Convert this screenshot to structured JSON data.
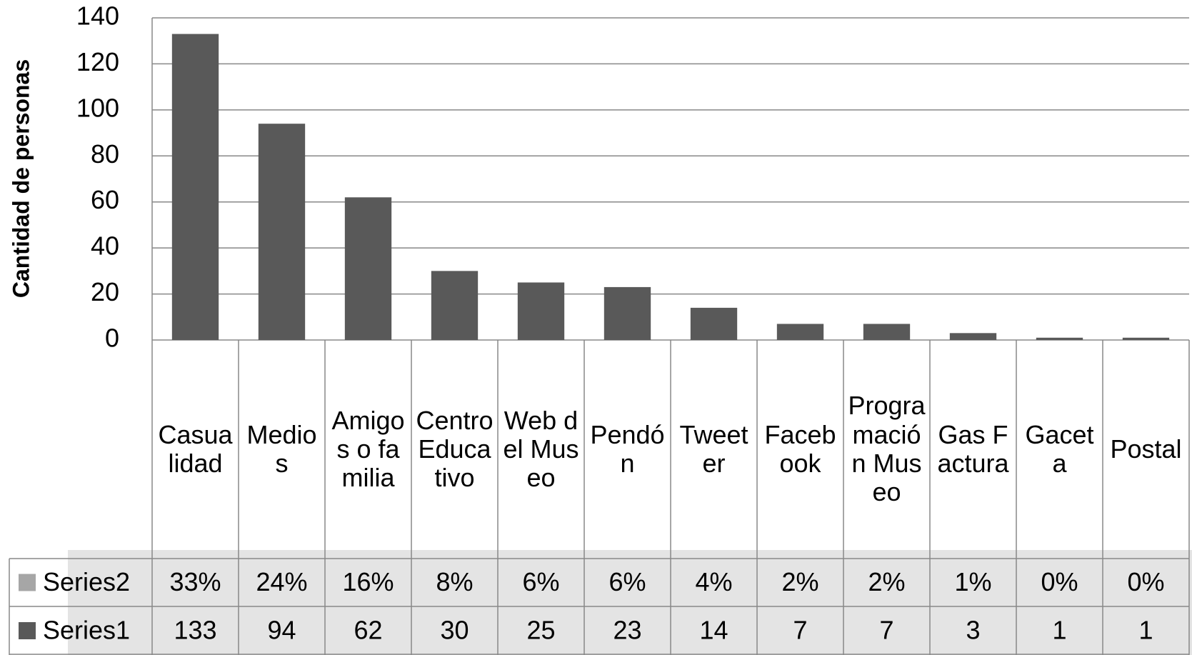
{
  "chart_data": {
    "type": "bar",
    "y_label": "Cantidad de personas",
    "categories": [
      "Casualidad",
      "Medios",
      "Amigos o familia",
      "Centro Educativo",
      "Web del Museo",
      "Pendón",
      "Tweeter",
      "Facebook",
      "Programación Museo",
      "Gas Factura",
      "Gaceta",
      "Postal"
    ],
    "series": [
      {
        "name": "Series2",
        "color": "#a6a6a6",
        "values": [
          33,
          24,
          16,
          8,
          6,
          6,
          4,
          2,
          2,
          1,
          0,
          0
        ],
        "value_labels": [
          "33%",
          "24%",
          "16%",
          "8%",
          "6%",
          "6%",
          "4%",
          "2%",
          "2%",
          "1%",
          "0%",
          "0%"
        ],
        "plotted": false
      },
      {
        "name": "Series1",
        "color": "#595959",
        "values": [
          133,
          94,
          62,
          30,
          25,
          23,
          14,
          7,
          7,
          3,
          1,
          1
        ]
      }
    ],
    "ylim": [
      0,
      140
    ],
    "yticks": [
      0,
      20,
      40,
      60,
      80,
      100,
      120,
      140
    ],
    "grid": true
  }
}
